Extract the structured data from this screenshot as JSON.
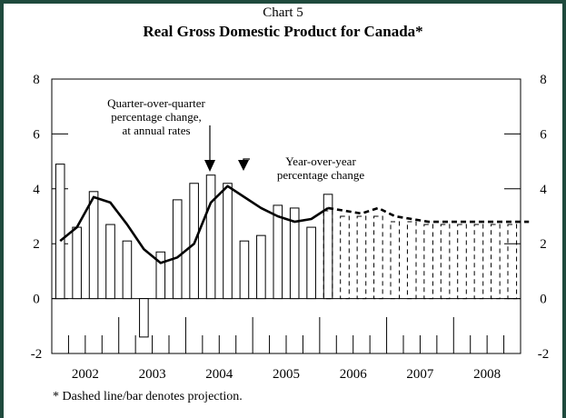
{
  "chart_data": {
    "type": "bar+line",
    "title_line1": "Chart 5",
    "title": "Real Gross Domestic Product for Canada*",
    "ylim": [
      -2,
      8
    ],
    "yticks": [
      "8",
      "6",
      "4",
      "2",
      "0",
      "-2"
    ],
    "year_labels": [
      "2002",
      "2003",
      "2004",
      "2005",
      "2006",
      "2007",
      "2008"
    ],
    "bars": {
      "name": "Quarter-over-quarter percentage change, at annual rates",
      "actual": [
        4.9,
        2.6,
        3.9,
        2.7,
        2.1,
        -1.4,
        1.7,
        3.6,
        4.2,
        4.5,
        4.2,
        2.1,
        2.3,
        3.4,
        3.3,
        2.6,
        3.8
      ],
      "projection": [
        3.2,
        3.0,
        3.0,
        3.0,
        2.8,
        2.8,
        2.7,
        2.7,
        2.7,
        2.7,
        2.7,
        2.7
      ]
    },
    "line": {
      "name": "Year-over-year percentage change",
      "actual": [
        2.1,
        2.6,
        3.7,
        3.5,
        2.7,
        1.8,
        1.3,
        1.5,
        2.0,
        3.5,
        4.1,
        3.7,
        3.3,
        3.0,
        2.8,
        2.9,
        3.3
      ],
      "projection": [
        3.3,
        3.2,
        3.1,
        3.3,
        3.0,
        2.9,
        2.8,
        2.8,
        2.8,
        2.8,
        2.8,
        2.8,
        2.8
      ]
    },
    "annotation_q": [
      "Quarter-over-quarter",
      "percentage change,",
      "at annual rates"
    ],
    "annotation_y": [
      "Year-over-year",
      "percentage change"
    ],
    "footnote": "* Dashed line/bar denotes projection.",
    "grid": false
  },
  "colors": {
    "frame": "#1f4a3d",
    "ink": "#000000"
  }
}
